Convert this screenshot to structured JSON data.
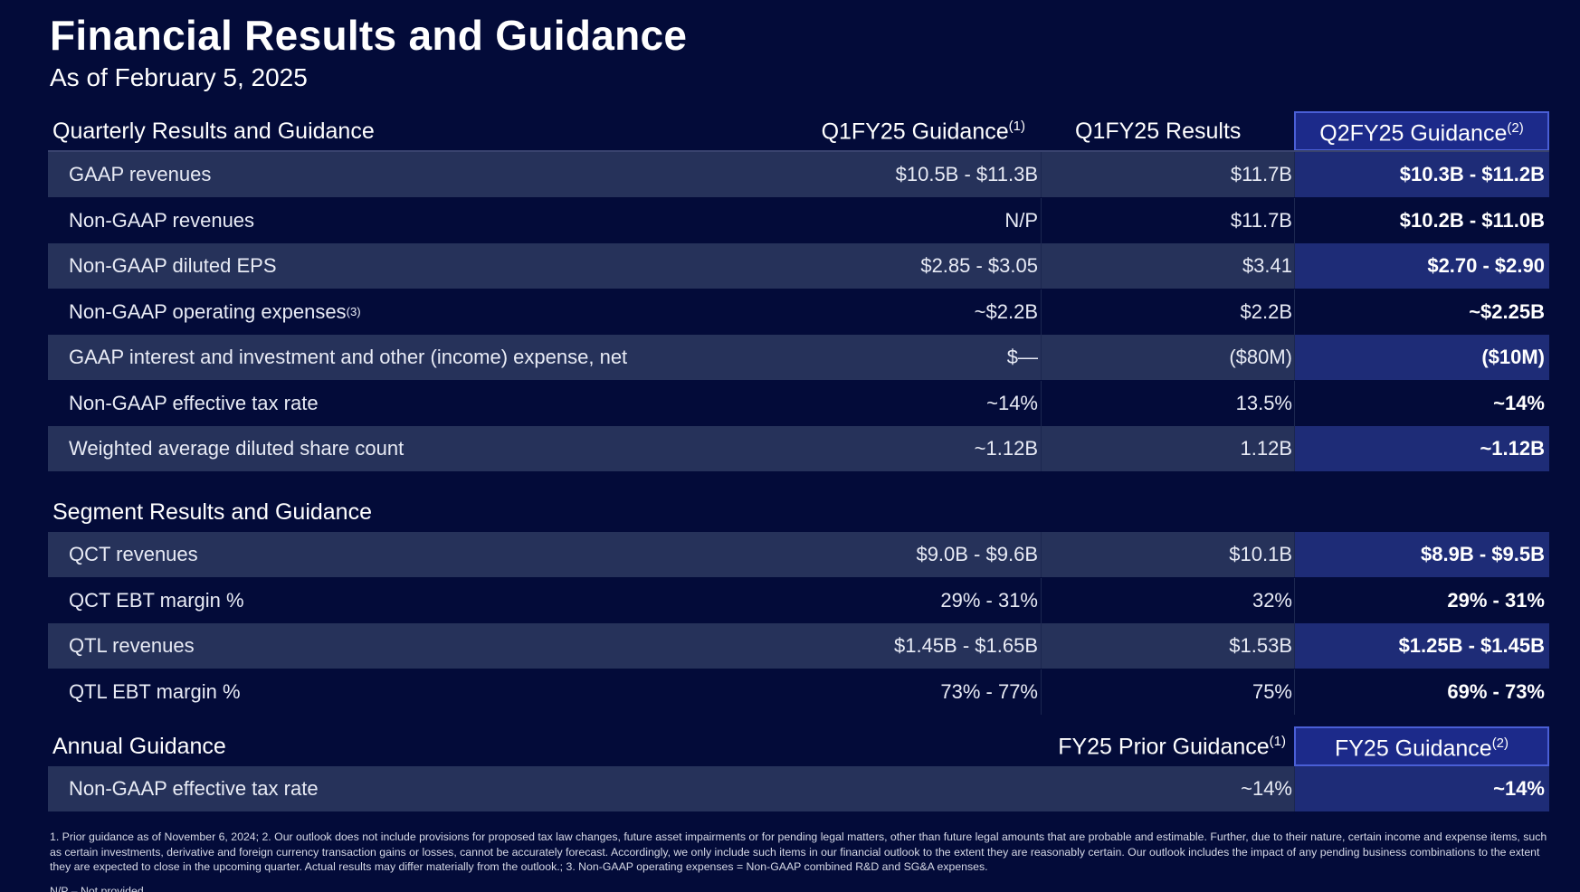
{
  "title": "Financial Results and Guidance",
  "subtitle": "As of February 5, 2025",
  "quarterly": {
    "section_title": "Quarterly Results and Guidance",
    "col_guidance": "Q1FY25 Guidance",
    "col_guidance_note": "(1)",
    "col_results": "Q1FY25 Results",
    "col_next": "Q2FY25 Guidance",
    "col_next_note": "(2)",
    "rows": [
      {
        "label": "GAAP revenues",
        "note": "",
        "guidance": "$10.5B - $11.3B",
        "results": "$11.7B",
        "next": "$10.3B - $11.2B"
      },
      {
        "label": "Non-GAAP revenues",
        "note": "",
        "guidance": "N/P",
        "results": "$11.7B",
        "next": "$10.2B - $11.0B"
      },
      {
        "label": "Non-GAAP diluted EPS",
        "note": "",
        "guidance": "$2.85 - $3.05",
        "results": "$3.41",
        "next": "$2.70 - $2.90"
      },
      {
        "label": "Non-GAAP operating expenses",
        "note": "(3)",
        "guidance": "~$2.2B",
        "results": "$2.2B",
        "next": "~$2.25B"
      },
      {
        "label": "GAAP interest and investment and other (income) expense, net",
        "note": "",
        "guidance": "$—",
        "results": "($80M)",
        "next": "($10M)"
      },
      {
        "label": "Non-GAAP effective tax rate",
        "note": "",
        "guidance": "~14%",
        "results": "13.5%",
        "next": "~14%"
      },
      {
        "label": "Weighted average diluted share count",
        "note": "",
        "guidance": "~1.12B",
        "results": "1.12B",
        "next": "~1.12B"
      }
    ]
  },
  "segment": {
    "section_title": "Segment Results and Guidance",
    "rows": [
      {
        "label": "QCT revenues",
        "guidance": "$9.0B - $9.6B",
        "results": "$10.1B",
        "next": "$8.9B - $9.5B"
      },
      {
        "label": "QCT EBT margin %",
        "guidance": "29% - 31%",
        "results": "32%",
        "next": "29% - 31%"
      },
      {
        "label": "QTL revenues",
        "guidance": "$1.45B - $1.65B",
        "results": "$1.53B",
        "next": "$1.25B - $1.45B"
      },
      {
        "label": "QTL EBT margin %",
        "guidance": "73% - 77%",
        "results": "75%",
        "next": "69% - 73%"
      }
    ]
  },
  "annual": {
    "section_title": "Annual Guidance",
    "col_prior": "FY25 Prior Guidance",
    "col_prior_note": "(1)",
    "col_current": "FY25 Guidance",
    "col_current_note": "(2)",
    "rows": [
      {
        "label": "Non-GAAP effective tax rate",
        "prior": "~14%",
        "current": "~14%"
      }
    ]
  },
  "footnote": "1. Prior guidance as of November 6, 2024; 2. Our outlook does not include provisions for proposed tax law changes, future asset impairments or for pending legal matters, other than future legal amounts that are probable and estimable. Further, due to their nature, certain income and expense items, such as certain investments, derivative and foreign currency transaction gains or losses, cannot be accurately forecast. Accordingly, we only include such items in our financial outlook to the extent they are reasonably certain. Our outlook includes the impact of any pending business combinations to the extent they are expected to close in the upcoming quarter. Actual results may differ materially from the outlook.; 3. Non-GAAP operating expenses = Non-GAAP combined R&D and SG&A expenses.",
  "footnote2": "N/P – Not provided"
}
